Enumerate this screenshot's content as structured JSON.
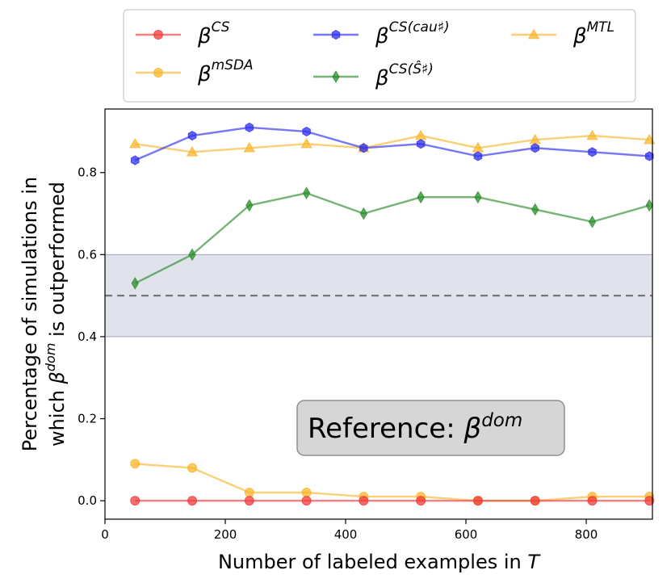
{
  "chart_data": {
    "type": "line",
    "xlabel": {
      "prefix": "Number of labeled examples in ",
      "var": "T"
    },
    "ylabel": {
      "line1": "Percentage of simulations in",
      "line2_prefix": "which ",
      "line2_var": "β",
      "line2_sup": "dom",
      "line2_suffix": " is outperformed"
    },
    "xlim": [
      0,
      910
    ],
    "ylim": [
      -0.045,
      0.955
    ],
    "xticks": [
      0,
      200,
      400,
      600,
      800
    ],
    "yticks": [
      0.0,
      0.2,
      0.4,
      0.6,
      0.8
    ],
    "x": [
      50,
      145,
      240,
      335,
      430,
      525,
      620,
      715,
      810,
      905
    ],
    "reference_line": 0.5,
    "band": [
      0.4,
      0.6
    ],
    "annotation": {
      "text": "Reference: ",
      "var": "β",
      "sup": "dom"
    },
    "legend_position": "top-center",
    "series": [
      {
        "name": "β",
        "sup": "CS",
        "color": "#f03c3c",
        "marker": "circle",
        "values": [
          0.0,
          0.0,
          0.0,
          0.0,
          0.0,
          0.0,
          0.0,
          0.0,
          0.0,
          0.0
        ]
      },
      {
        "name": "β",
        "sup": "mSDA",
        "color": "#f9b52c",
        "marker": "circle",
        "values": [
          0.09,
          0.08,
          0.02,
          0.02,
          0.01,
          0.01,
          0.0,
          0.0,
          0.01,
          0.01
        ]
      },
      {
        "name": "β",
        "sup": "CS(cau♯)",
        "color": "#2e2ef0",
        "marker": "hexagon",
        "values": [
          0.83,
          0.89,
          0.91,
          0.9,
          0.86,
          0.87,
          0.84,
          0.86,
          0.85,
          0.84
        ]
      },
      {
        "name": "β",
        "sup": "CS(Ŝ♯)",
        "color": "#2a8c2a",
        "marker": "diamond",
        "values": [
          0.53,
          0.6,
          0.72,
          0.75,
          0.7,
          0.74,
          0.74,
          0.71,
          0.68,
          0.72
        ]
      },
      {
        "name": "β",
        "sup": "MTL",
        "color": "#f9b52c",
        "marker": "triangle",
        "values": [
          0.87,
          0.85,
          0.86,
          0.87,
          0.86,
          0.89,
          0.86,
          0.88,
          0.89,
          0.88
        ]
      }
    ]
  }
}
